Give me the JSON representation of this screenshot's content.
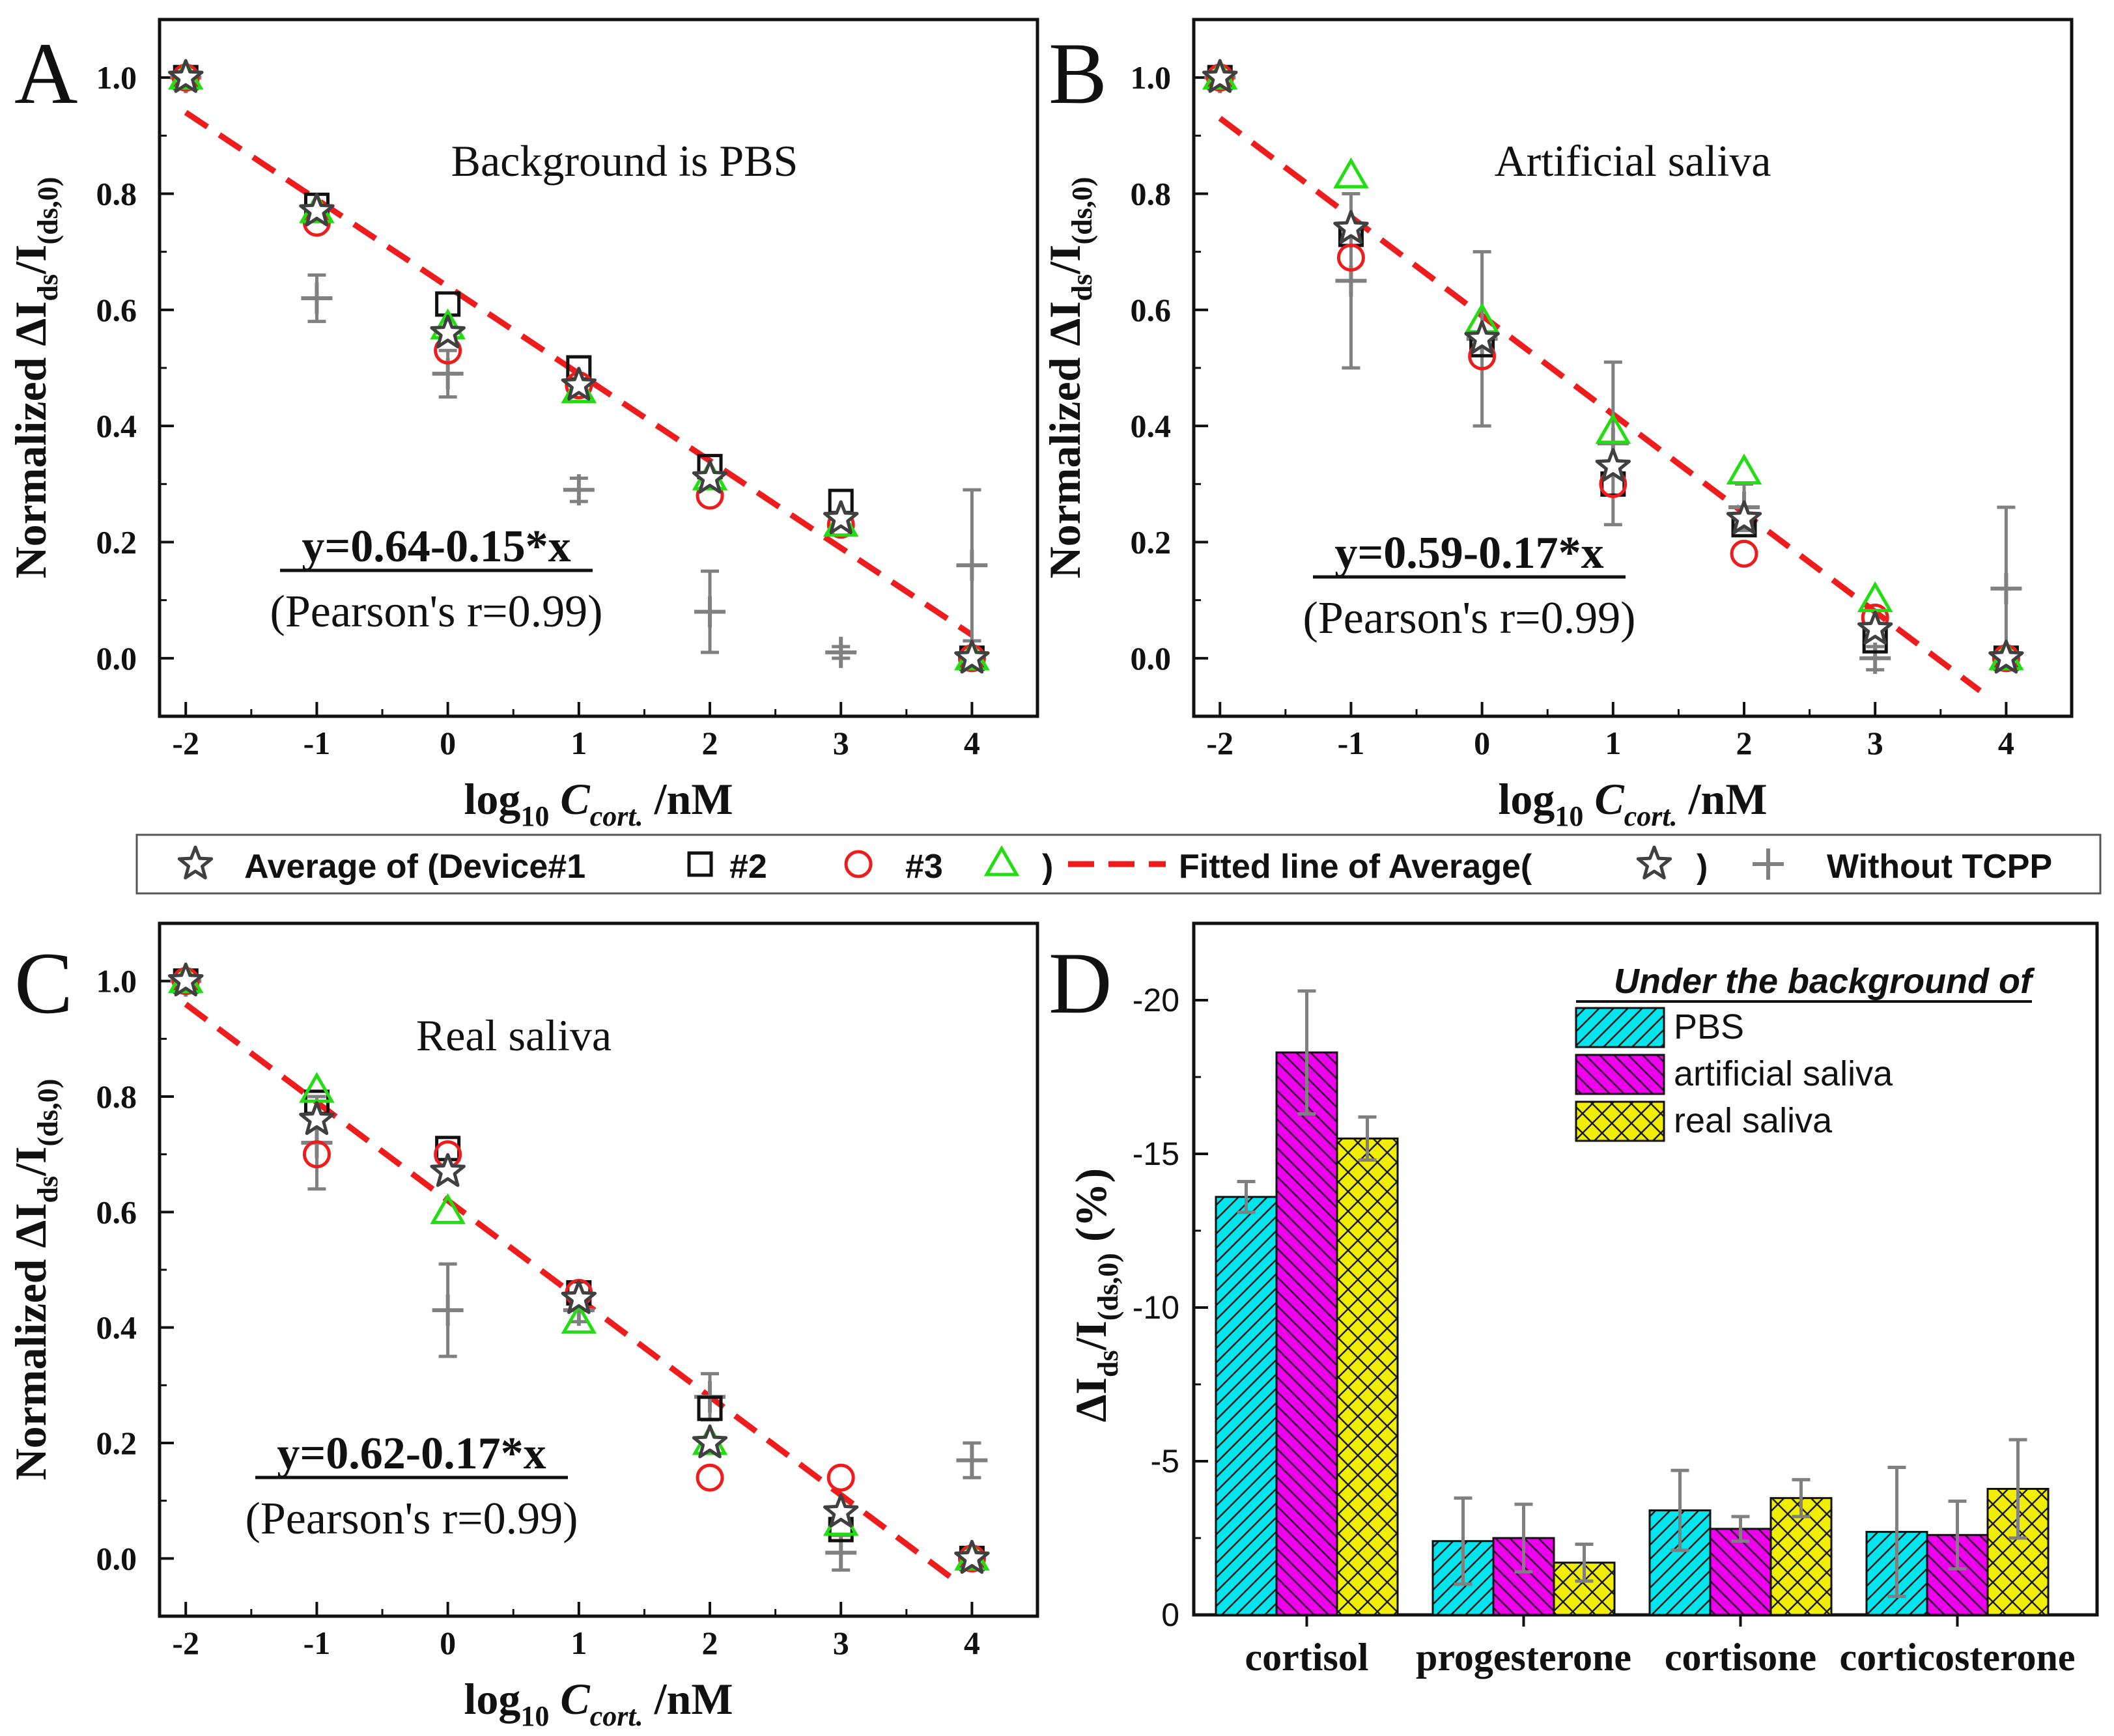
{
  "panel_letters": [
    "A",
    "B",
    "C",
    "D"
  ],
  "legend": {
    "average_label": "Average of (Device#1",
    "device2_label": "#2",
    "device3_label": "#3",
    "close_paren": ")",
    "fit_label": "Fitted line of Average(",
    "fit_close": ")",
    "without_label": "Without TCPP"
  },
  "colors": {
    "average": "#404040",
    "device2": "#111111",
    "device3": "#ee1c1c",
    "device4": "#22dd11",
    "fit": "#ee1c1c",
    "without": "#808080",
    "pbs": "#00e5ee",
    "artificial": "#ee00ee",
    "real": "#f2ee00"
  },
  "chart_data": [
    {
      "panel": "A",
      "type": "scatter",
      "title": "Background is PBS",
      "xlabel": "log10 Ccort. /nM",
      "ylabel": "Normalized ΔIds/I(ds,0)",
      "x_ticks": [
        "-2",
        "-1",
        "0",
        "1",
        "2",
        "3",
        "4"
      ],
      "y_ticks": [
        "0.0",
        "0.2",
        "0.4",
        "0.6",
        "0.8",
        "1.0"
      ],
      "xlim": [
        -2.2,
        4.5
      ],
      "ylim": [
        -0.1,
        1.1
      ],
      "equation": "y=0.64-0.15*x",
      "pearson": "(Pearson's r=0.99)",
      "fit": {
        "intercept": 0.64,
        "slope": -0.15,
        "x_range": [
          -2,
          4
        ]
      },
      "x": [
        -2,
        -1,
        0,
        1,
        2,
        3,
        4
      ],
      "series": [
        {
          "name": "Average",
          "marker": "star",
          "values": [
            1.0,
            0.77,
            0.56,
            0.47,
            0.31,
            0.24,
            0.0
          ]
        },
        {
          "name": "#2",
          "marker": "square",
          "values": [
            1.0,
            0.78,
            0.61,
            0.5,
            0.33,
            0.27,
            0.0
          ]
        },
        {
          "name": "#3",
          "marker": "circle",
          "values": [
            1.0,
            0.75,
            0.53,
            0.47,
            0.28,
            0.23,
            0.0
          ]
        },
        {
          "name": "Device#1",
          "marker": "triangle",
          "values": [
            1.0,
            0.77,
            0.57,
            0.46,
            0.31,
            0.23,
            0.0
          ]
        },
        {
          "name": "Without TCPP",
          "marker": "plus",
          "values": [
            1.0,
            0.62,
            0.49,
            0.29,
            0.08,
            0.01,
            0.16
          ],
          "errors": [
            0,
            0.04,
            0.04,
            0.02,
            0.07,
            0.01,
            0.13
          ]
        }
      ]
    },
    {
      "panel": "B",
      "type": "scatter",
      "title": "Artificial saliva",
      "xlabel": "log10 Ccort. /nM",
      "ylabel": "Normalized ΔIds/I(ds,0)",
      "x_ticks": [
        "-2",
        "-1",
        "0",
        "1",
        "2",
        "3",
        "4"
      ],
      "y_ticks": [
        "0.0",
        "0.2",
        "0.4",
        "0.6",
        "0.8",
        "1.0"
      ],
      "xlim": [
        -2.2,
        4.5
      ],
      "ylim": [
        -0.1,
        1.1
      ],
      "equation": "y=0.59-0.17*x",
      "pearson": "(Pearson's r=0.99)",
      "fit": {
        "intercept": 0.59,
        "slope": -0.17,
        "x_range": [
          -2,
          3.8
        ]
      },
      "x": [
        -2,
        -1,
        0,
        1,
        2,
        3,
        4
      ],
      "series": [
        {
          "name": "Average",
          "marker": "star",
          "values": [
            1.0,
            0.74,
            0.55,
            0.33,
            0.24,
            0.05,
            0.0
          ]
        },
        {
          "name": "#2",
          "marker": "square",
          "values": [
            1.0,
            0.73,
            0.54,
            0.3,
            0.23,
            0.03,
            0.0
          ]
        },
        {
          "name": "#3",
          "marker": "circle",
          "values": [
            1.0,
            0.69,
            0.52,
            0.3,
            0.18,
            0.07,
            0.0
          ]
        },
        {
          "name": "Device#1",
          "marker": "triangle",
          "values": [
            1.0,
            0.83,
            0.58,
            0.39,
            0.32,
            0.1,
            0.0
          ]
        },
        {
          "name": "Without TCPP",
          "marker": "plus",
          "values": [
            1.0,
            0.65,
            0.55,
            0.37,
            0.26,
            0.0,
            0.12
          ],
          "errors": [
            0,
            0.15,
            0.15,
            0.14,
            0.04,
            0.02,
            0.14
          ]
        }
      ]
    },
    {
      "panel": "C",
      "type": "scatter",
      "title": "Real saliva",
      "xlabel": "log10 Ccort. /nM",
      "ylabel": "Normalized ΔIds/I(ds,0)",
      "x_ticks": [
        "-2",
        "-1",
        "0",
        "1",
        "2",
        "3",
        "4"
      ],
      "y_ticks": [
        "0.0",
        "0.2",
        "0.4",
        "0.6",
        "0.8",
        "1.0"
      ],
      "xlim": [
        -2.2,
        4.5
      ],
      "ylim": [
        -0.1,
        1.1
      ],
      "equation": "y=0.62-0.17*x",
      "pearson": "(Pearson's r=0.99)",
      "fit": {
        "intercept": 0.62,
        "slope": -0.17,
        "x_range": [
          -2,
          3.9
        ]
      },
      "x": [
        -2,
        -1,
        0,
        1,
        2,
        3,
        4
      ],
      "series": [
        {
          "name": "Average",
          "marker": "star",
          "values": [
            1.0,
            0.76,
            0.67,
            0.45,
            0.2,
            0.08,
            0.0
          ]
        },
        {
          "name": "#2",
          "marker": "square",
          "values": [
            1.0,
            0.79,
            0.71,
            0.46,
            0.26,
            0.05,
            0.0
          ]
        },
        {
          "name": "#3",
          "marker": "circle",
          "values": [
            1.0,
            0.7,
            0.7,
            0.46,
            0.14,
            0.14,
            0.0
          ]
        },
        {
          "name": "Device#1",
          "marker": "triangle",
          "values": [
            1.0,
            0.81,
            0.6,
            0.41,
            0.2,
            0.06,
            0.0
          ]
        },
        {
          "name": "Without TCPP",
          "marker": "plus",
          "values": [
            1.0,
            0.72,
            0.43,
            0.43,
            0.28,
            0.01,
            0.17
          ],
          "errors": [
            0,
            0.08,
            0.08,
            0.02,
            0.04,
            0.03,
            0.03
          ]
        }
      ]
    },
    {
      "panel": "D",
      "type": "bar",
      "ylabel": "ΔIds/I(ds,0) (%)",
      "categories": [
        "cortisol",
        "progesterone",
        "cortisone",
        "corticosterone"
      ],
      "y_ticks": [
        "0",
        "-5",
        "-10",
        "-15",
        "-20"
      ],
      "ylim": [
        0,
        -22.5
      ],
      "y_inverted": true,
      "legend_title": "Under the background of",
      "series": [
        {
          "name": "PBS",
          "values": [
            -13.6,
            -2.4,
            -3.4,
            -2.7
          ],
          "errors": [
            0.5,
            1.4,
            1.3,
            2.1
          ]
        },
        {
          "name": "artificial saliva",
          "values": [
            -18.3,
            -2.5,
            -2.8,
            -2.6
          ],
          "errors": [
            2.0,
            1.1,
            0.4,
            1.1
          ]
        },
        {
          "name": "real saliva",
          "values": [
            -15.5,
            -1.7,
            -3.8,
            -4.1
          ],
          "errors": [
            0.7,
            0.6,
            0.6,
            1.6
          ]
        }
      ]
    }
  ]
}
